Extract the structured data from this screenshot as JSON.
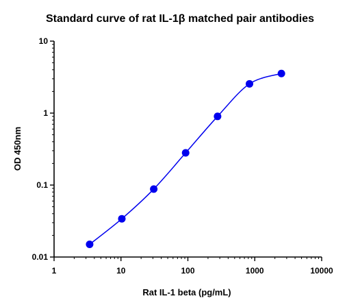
{
  "chart_data": {
    "type": "scatter",
    "title": "Standard curve of rat IL-1β matched pair antibodies",
    "xlabel": "Rat IL-1 beta (pg/mL)",
    "ylabel": "OD 450nm",
    "xscale": "log",
    "yscale": "log",
    "xlim": [
      1,
      10000
    ],
    "ylim": [
      0.01,
      10
    ],
    "xticks": [
      1,
      10,
      100,
      1000,
      10000
    ],
    "xtick_labels": [
      "1",
      "10",
      "100",
      "1000",
      "10000"
    ],
    "yticks": [
      0.01,
      0.1,
      1,
      10
    ],
    "ytick_labels": [
      "0.01",
      "0.1",
      "1",
      "10"
    ],
    "grid": false,
    "series": [
      {
        "x": [
          3.4,
          10.3,
          30.9,
          92.6,
          277.8,
          833.3,
          2500
        ],
        "y": [
          0.015,
          0.034,
          0.088,
          0.28,
          0.9,
          2.55,
          3.55
        ],
        "color": "#0000ee",
        "marker": "circle",
        "fit": "4PL curve"
      }
    ]
  }
}
